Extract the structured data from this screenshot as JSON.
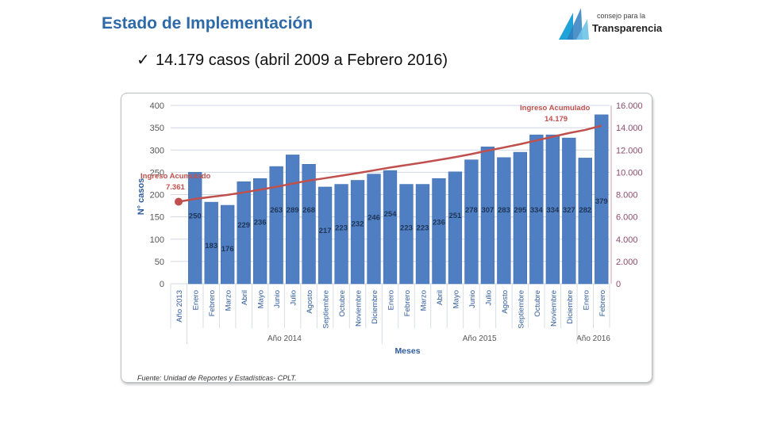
{
  "slide": {
    "title": "Estado de Implementación",
    "bullet_check": "✓",
    "bullet_bold": "14.179 casos",
    "bullet_rest": "(abril 2009 a Febrero 2016)"
  },
  "logo": {
    "small_text": "consejo para la",
    "big_text": "Transparencia"
  },
  "colors": {
    "bar": "#4f7fc2",
    "line": "#c0504d",
    "grid": "#d0d8e4",
    "title": "#2e6aa8",
    "right_axis": "#8e4a6a"
  },
  "chart_data": {
    "type": "bar",
    "title": "",
    "xlabel": "Meses",
    "ylabel": "N° casos",
    "ylim": [
      0,
      400
    ],
    "y_ticks": [
      "0",
      "50",
      "100",
      "150",
      "200",
      "250",
      "300",
      "350",
      "400"
    ],
    "y2lim": [
      0,
      16000
    ],
    "y2_ticks": [
      "0",
      "2.000",
      "4.000",
      "6.000",
      "8.000",
      "10.000",
      "12.000",
      "14.000",
      "16.000"
    ],
    "categories": [
      "Año 2013",
      "Enero",
      "Febrero",
      "Marzo",
      "Abril",
      "Mayo",
      "Junio",
      "Julio",
      "Agosto",
      "Septiembre",
      "Octubre",
      "Noviembre",
      "Diciembre",
      "Enero",
      "Febrero",
      "Marzo",
      "Abril",
      "Mayo",
      "Junio",
      "Julio",
      "Agosto",
      "Septiembre",
      "Octubre",
      "Noviembre",
      "Diciembre",
      "Enero",
      "Febrero"
    ],
    "series": [
      {
        "name": "N° casos",
        "type": "bar",
        "values": [
          null,
          250,
          183,
          176,
          229,
          236,
          263,
          289,
          268,
          217,
          223,
          232,
          246,
          254,
          223,
          223,
          236,
          251,
          278,
          307,
          283,
          295,
          334,
          334,
          327,
          282,
          379
        ],
        "labels": [
          "",
          "250",
          "183",
          "176",
          "229",
          "236",
          "263",
          "289",
          "268",
          "217",
          "223",
          "232",
          "246",
          "254",
          "223",
          "223",
          "236",
          "251",
          "278",
          "307",
          "283",
          "295",
          "334",
          "334",
          "327",
          "282",
          "379"
        ]
      },
      {
        "name": "Ingreso Acumulado",
        "type": "line",
        "axis": "right",
        "values": [
          7361,
          7611,
          7794,
          7970,
          8199,
          8435,
          8698,
          8987,
          9255,
          9472,
          9695,
          9927,
          10173,
          10427,
          10650,
          10873,
          11109,
          11360,
          11638,
          11945,
          12228,
          12523,
          12857,
          13191,
          13518,
          13800,
          14179
        ]
      }
    ],
    "groups": [
      {
        "label": "Año 2014",
        "start": 1,
        "end": 12
      },
      {
        "label": "Año 2015",
        "start": 13,
        "end": 24
      },
      {
        "label": "Año 2016",
        "start": 25,
        "end": 26
      }
    ],
    "annotations": [
      {
        "label": "Ingreso Acumulado",
        "value": "7.361",
        "index": 0
      },
      {
        "label": "Ingreso Acumulado",
        "value": "14.179",
        "index": 26
      }
    ],
    "source": "Fuente: Unidad de Reportes y Estadísticas- CPLT."
  }
}
